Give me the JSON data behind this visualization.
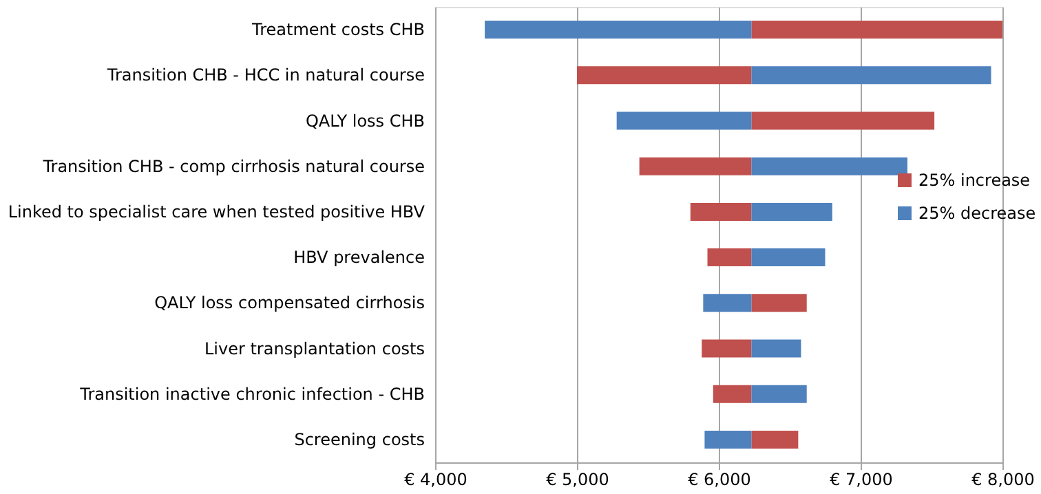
{
  "chart_data": {
    "type": "bar",
    "orientation": "horizontal",
    "categories": [
      "Treatment costs CHB",
      "Transition CHB - HCC in natural course",
      "QALY loss CHB",
      "Transition CHB - comp cirrhosis natural course",
      "Linked to specialist care when tested positive HBV",
      "HBV prevalence ",
      "QALY loss compensated cirrhosis",
      "Liver transplantation costs",
      "Transition inactive chronic infection - CHB",
      "Screening costs"
    ],
    "series": [
      {
        "name": "25% increase",
        "color": "#c0504d",
        "base": [
          6230,
          6230,
          6230,
          6230,
          6230,
          6230,
          6230,
          6230,
          6230,
          6230
        ],
        "values": [
          1770,
          -1230,
          1290,
          -790,
          -430,
          -310,
          390,
          -350,
          -270,
          330
        ]
      },
      {
        "name": "25% decrease",
        "color": "#4f81bd",
        "base": [
          6230,
          6230,
          6230,
          6230,
          6230,
          6230,
          6230,
          6230,
          6230,
          6230
        ],
        "values": [
          -1880,
          1690,
          -950,
          1100,
          570,
          520,
          -340,
          350,
          390,
          -330
        ]
      }
    ],
    "xlim": [
      4000,
      8000
    ],
    "xticks": [
      {
        "value": 4000,
        "label": "€ 4,000"
      },
      {
        "value": 5000,
        "label": "€ 5,000"
      },
      {
        "value": 6000,
        "label": "€ 6,000"
      },
      {
        "value": 7000,
        "label": "€ 7,000"
      },
      {
        "value": 8000,
        "label": "€ 8,000"
      }
    ],
    "grid": "x",
    "legend": "right"
  }
}
